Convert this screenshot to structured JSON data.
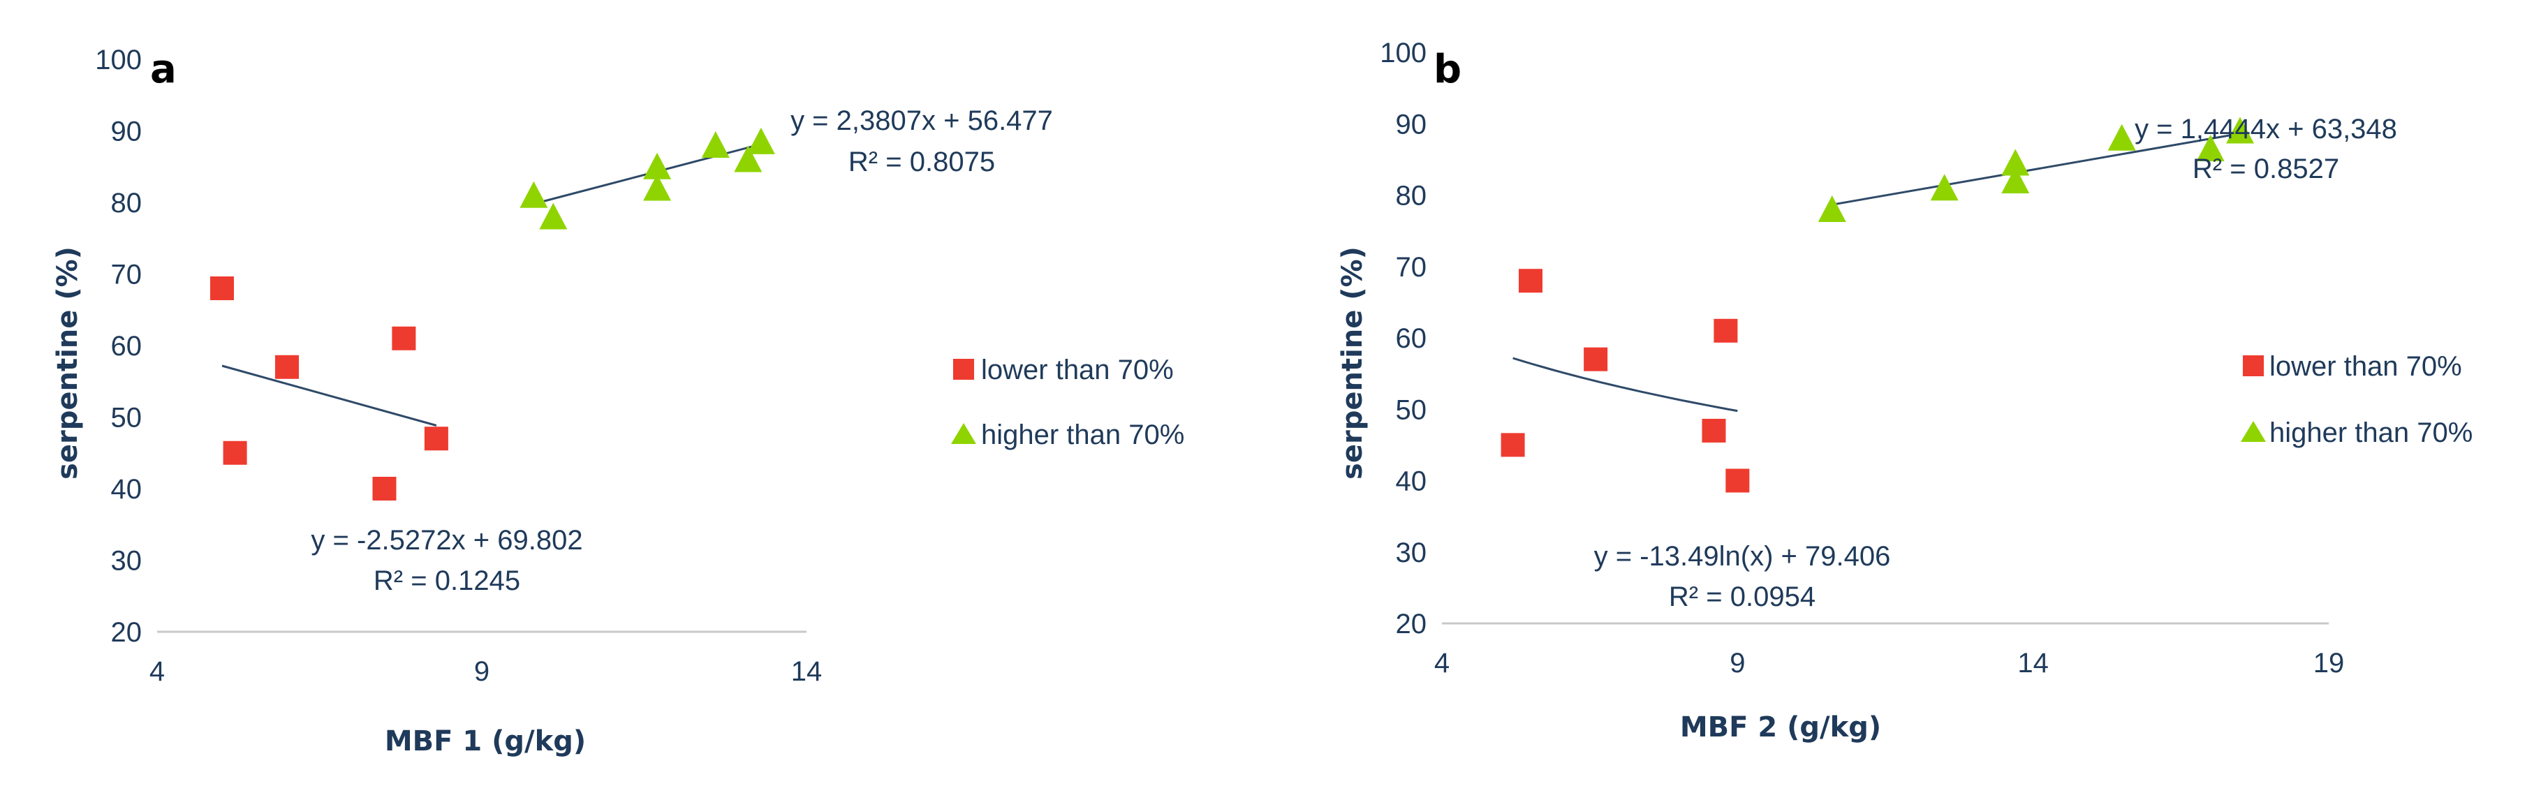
{
  "chart_data": [
    {
      "type": "scatter",
      "panel_label": "a",
      "xlabel": "MBF 1 (g/kg)",
      "ylabel": "serpentine (%)",
      "xlim": [
        4,
        14
      ],
      "ylim": [
        20,
        100
      ],
      "xticks": [
        "4",
        "9",
        "14"
      ],
      "yticks": [
        "20",
        "30",
        "40",
        "50",
        "60",
        "70",
        "80",
        "90",
        "100"
      ],
      "legend_position": "right",
      "series": [
        {
          "name": "lower than 70%",
          "marker": "square",
          "color": "#ee3b2f",
          "points": [
            [
              5.0,
              68
            ],
            [
              5.2,
              45
            ],
            [
              6.0,
              57
            ],
            [
              7.8,
              61
            ],
            [
              7.5,
              40
            ],
            [
              8.3,
              47
            ]
          ],
          "trendline": {
            "kind": "linear",
            "a": -2.5272,
            "b": 69.802,
            "x_range": [
              5.0,
              8.3
            ]
          },
          "equation": "y = -2.5272x + 69.802",
          "r2": "R² = 0.1245"
        },
        {
          "name": "higher than 70%",
          "marker": "triangle",
          "color": "#8fd400",
          "points": [
            [
              9.8,
              81
            ],
            [
              10.1,
              78
            ],
            [
              11.7,
              85
            ],
            [
              11.7,
              82
            ],
            [
              12.6,
              88
            ],
            [
              13.1,
              86
            ],
            [
              13.3,
              88.5
            ]
          ],
          "trendline": {
            "kind": "linear",
            "a": 2.3807,
            "b": 56.477,
            "x_range": [
              9.8,
              13.3
            ]
          },
          "equation": "y = 2,3807x + 56.477",
          "r2": "R² = 0.8075"
        }
      ]
    },
    {
      "type": "scatter",
      "panel_label": "b",
      "xlabel": "MBF 2 (g/kg)",
      "ylabel": "serpentine (%)",
      "xlim": [
        4,
        19
      ],
      "ylim": [
        20,
        100
      ],
      "xticks": [
        "4",
        "9",
        "14",
        "19"
      ],
      "yticks": [
        "20",
        "30",
        "40",
        "50",
        "60",
        "70",
        "80",
        "90",
        "100"
      ],
      "legend_position": "right",
      "series": [
        {
          "name": "lower than 70%",
          "marker": "square",
          "color": "#ee3b2f",
          "points": [
            [
              5.2,
              45
            ],
            [
              5.5,
              68
            ],
            [
              6.6,
              57
            ],
            [
              8.6,
              47
            ],
            [
              8.8,
              61
            ],
            [
              9.0,
              40
            ]
          ],
          "trendline": {
            "kind": "log",
            "a": -13.49,
            "b": 79.406,
            "x_range": [
              5.2,
              9.0
            ]
          },
          "equation": "y = -13.49ln(x) + 79.406",
          "r2": "R² = 0.0954"
        },
        {
          "name": "higher than 70%",
          "marker": "triangle",
          "color": "#8fd400",
          "points": [
            [
              10.6,
              78
            ],
            [
              12.5,
              81
            ],
            [
              13.7,
              84.5
            ],
            [
              13.7,
              82
            ],
            [
              15.5,
              88
            ],
            [
              17.0,
              86.5
            ],
            [
              17.5,
              89
            ]
          ],
          "trendline": {
            "kind": "linear",
            "a": 1.4444,
            "b": 63.348,
            "x_range": [
              10.6,
              17.5
            ]
          },
          "equation": "y = 1,4444x + 63,348",
          "r2": "R² = 0.8527"
        }
      ]
    }
  ]
}
